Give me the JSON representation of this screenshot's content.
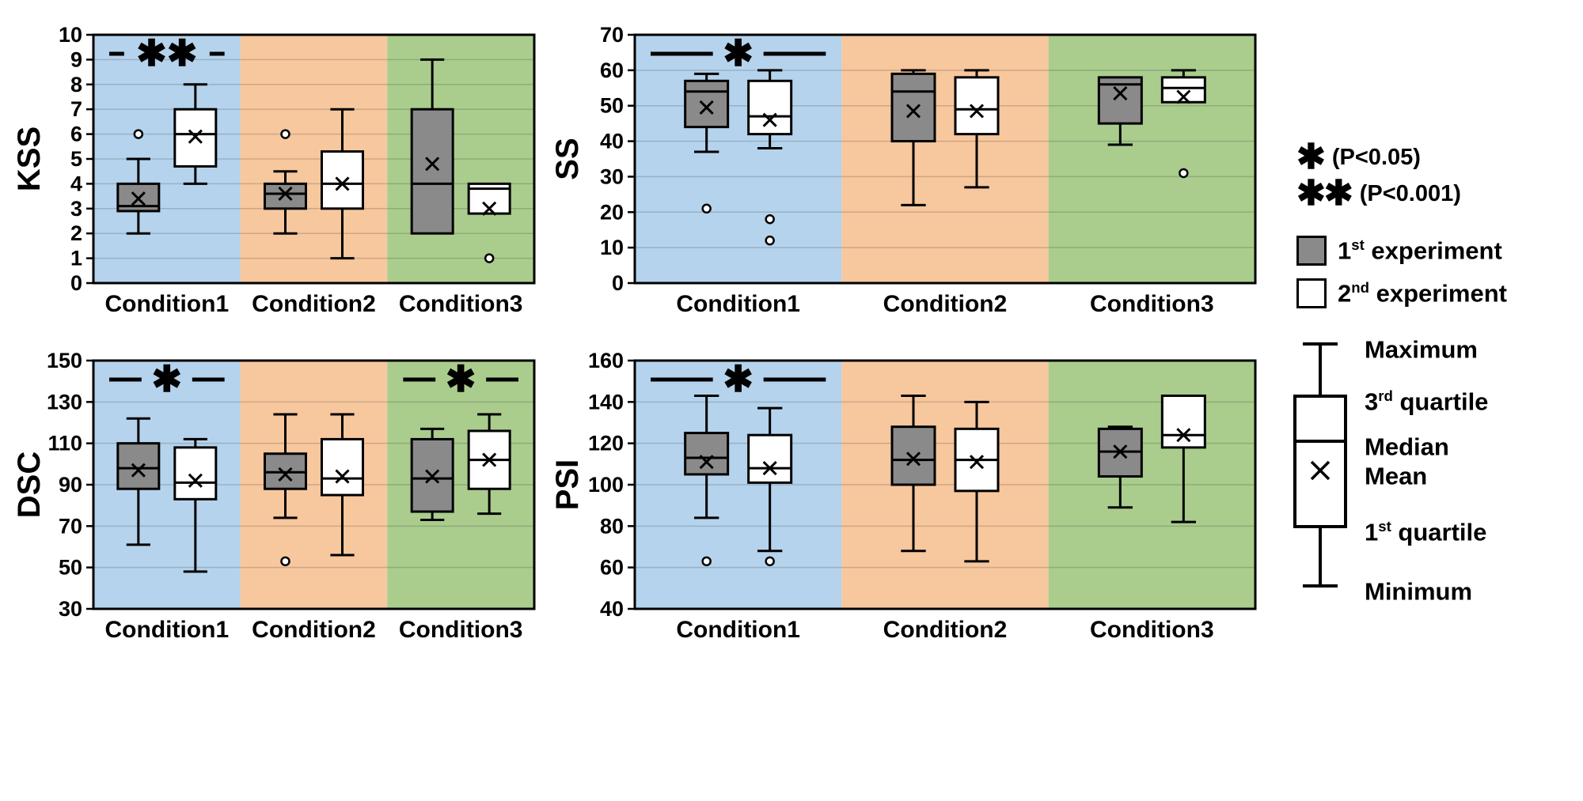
{
  "colors": {
    "band_blue": "#b5d3ec",
    "band_orange": "#f7c79e",
    "band_green": "#aacd8e",
    "series1_fill": "#8a8a8a",
    "series2_fill": "#ffffff",
    "stroke": "#000000"
  },
  "sig_legend": [
    {
      "symbol": "✱",
      "label": "(P<0.05)"
    },
    {
      "symbol": "✱✱",
      "label": "(P<0.001)"
    }
  ],
  "series_legend": [
    {
      "num": "1",
      "sup": "st",
      "rest": " experiment"
    },
    {
      "num": "2",
      "sup": "nd",
      "rest": " experiment"
    }
  ],
  "anatomy_legend": [
    {
      "pre": "Maximum",
      "sup": "",
      "post": ""
    },
    {
      "pre": "3",
      "sup": "rd",
      "post": " quartile"
    },
    {
      "pre": "Median",
      "sup": "",
      "post": ""
    },
    {
      "pre": "Mean",
      "sup": "",
      "post": ""
    },
    {
      "pre": "1",
      "sup": "st",
      "post": " quartile"
    },
    {
      "pre": "Minimum",
      "sup": "",
      "post": ""
    }
  ],
  "chart_data": [
    {
      "type": "boxplot",
      "title": "KSS",
      "ylim": [
        0,
        10
      ],
      "ytick_step": 1,
      "categories": [
        "Condition1",
        "Condition2",
        "Condition3"
      ],
      "significance": [
        {
          "category": 0,
          "label": "✱✱"
        }
      ],
      "series": [
        {
          "name": "1st experiment",
          "boxes": [
            {
              "low": 2,
              "q1": 2.9,
              "median": 3.1,
              "q3": 4,
              "high": 5,
              "mean": 3.4,
              "outliers": [
                6
              ]
            },
            {
              "low": 2,
              "q1": 3,
              "median": 3.6,
              "q3": 4,
              "high": 4.5,
              "mean": 3.6,
              "outliers": [
                6
              ]
            },
            {
              "low": 2,
              "q1": 2,
              "median": 4,
              "q3": 7,
              "high": 9,
              "mean": 4.8,
              "outliers": []
            }
          ]
        },
        {
          "name": "2nd experiment",
          "boxes": [
            {
              "low": 4,
              "q1": 4.7,
              "median": 6,
              "q3": 7,
              "high": 8,
              "mean": 5.9,
              "outliers": []
            },
            {
              "low": 1,
              "q1": 3,
              "median": 4,
              "q3": 5.3,
              "high": 7,
              "mean": 4,
              "outliers": []
            },
            {
              "low": 2.8,
              "q1": 2.8,
              "median": 3.8,
              "q3": 4,
              "high": 4,
              "mean": 3,
              "outliers": [
                1
              ]
            }
          ]
        }
      ]
    },
    {
      "type": "boxplot",
      "title": "SS",
      "ylim": [
        0,
        70
      ],
      "ytick_step": 10,
      "categories": [
        "Condition1",
        "Condition2",
        "Condition3"
      ],
      "significance": [
        {
          "category": 0,
          "label": "✱"
        }
      ],
      "series": [
        {
          "name": "1st experiment",
          "boxes": [
            {
              "low": 37,
              "q1": 44,
              "median": 54,
              "q3": 57,
              "high": 59,
              "mean": 49.5,
              "outliers": [
                21
              ]
            },
            {
              "low": 22,
              "q1": 40,
              "median": 54,
              "q3": 59,
              "high": 60,
              "mean": 48.5,
              "outliers": []
            },
            {
              "low": 39,
              "q1": 45,
              "median": 56,
              "q3": 58,
              "high": 58,
              "mean": 53.5,
              "outliers": []
            }
          ]
        },
        {
          "name": "2nd experiment",
          "boxes": [
            {
              "low": 38,
              "q1": 42,
              "median": 47,
              "q3": 57,
              "high": 60,
              "mean": 46,
              "outliers": [
                18,
                12
              ]
            },
            {
              "low": 27,
              "q1": 42,
              "median": 49,
              "q3": 58,
              "high": 60,
              "mean": 48.5,
              "outliers": []
            },
            {
              "low": 51,
              "q1": 51,
              "median": 55,
              "q3": 58,
              "high": 60,
              "mean": 52.5,
              "outliers": [
                31
              ]
            }
          ]
        }
      ]
    },
    {
      "type": "boxplot",
      "title": "DSC",
      "ylim": [
        30,
        150
      ],
      "ytick_step": 20,
      "categories": [
        "Condition1",
        "Condition2",
        "Condition3"
      ],
      "significance": [
        {
          "category": 0,
          "label": "✱"
        },
        {
          "category": 2,
          "label": "✱"
        }
      ],
      "series": [
        {
          "name": "1st experiment",
          "boxes": [
            {
              "low": 61,
              "q1": 88,
              "median": 98,
              "q3": 110,
              "high": 122,
              "mean": 97,
              "outliers": []
            },
            {
              "low": 74,
              "q1": 88,
              "median": 96,
              "q3": 105,
              "high": 124,
              "mean": 95,
              "outliers": [
                53
              ]
            },
            {
              "low": 73,
              "q1": 77,
              "median": 93,
              "q3": 112,
              "high": 117,
              "mean": 94,
              "outliers": []
            }
          ]
        },
        {
          "name": "2nd experiment",
          "boxes": [
            {
              "low": 48,
              "q1": 83,
              "median": 91,
              "q3": 108,
              "high": 112,
              "mean": 92,
              "outliers": []
            },
            {
              "low": 56,
              "q1": 85,
              "median": 93,
              "q3": 112,
              "high": 124,
              "mean": 94,
              "outliers": []
            },
            {
              "low": 76,
              "q1": 88,
              "median": 102,
              "q3": 116,
              "high": 124,
              "mean": 102,
              "outliers": []
            }
          ]
        }
      ]
    },
    {
      "type": "boxplot",
      "title": "PSI",
      "ylim": [
        40,
        160
      ],
      "ytick_step": 20,
      "categories": [
        "Condition1",
        "Condition2",
        "Condition3"
      ],
      "significance": [
        {
          "category": 0,
          "label": "✱"
        }
      ],
      "series": [
        {
          "name": "1st experiment",
          "boxes": [
            {
              "low": 84,
              "q1": 105,
              "median": 113,
              "q3": 125,
              "high": 143,
              "mean": 111,
              "outliers": [
                63
              ]
            },
            {
              "low": 68,
              "q1": 100,
              "median": 112,
              "q3": 128,
              "high": 143,
              "mean": 112.5,
              "outliers": []
            },
            {
              "low": 89,
              "q1": 104,
              "median": 116,
              "q3": 127,
              "high": 128,
              "mean": 116,
              "outliers": []
            }
          ]
        },
        {
          "name": "2nd experiment",
          "boxes": [
            {
              "low": 68,
              "q1": 101,
              "median": 108,
              "q3": 124,
              "high": 137,
              "mean": 108,
              "outliers": [
                63
              ]
            },
            {
              "low": 63,
              "q1": 97,
              "median": 112,
              "q3": 127,
              "high": 140,
              "mean": 111,
              "outliers": []
            },
            {
              "low": 82,
              "q1": 118,
              "median": 124,
              "q3": 143,
              "high": 143,
              "mean": 124,
              "outliers": []
            }
          ]
        }
      ]
    }
  ]
}
